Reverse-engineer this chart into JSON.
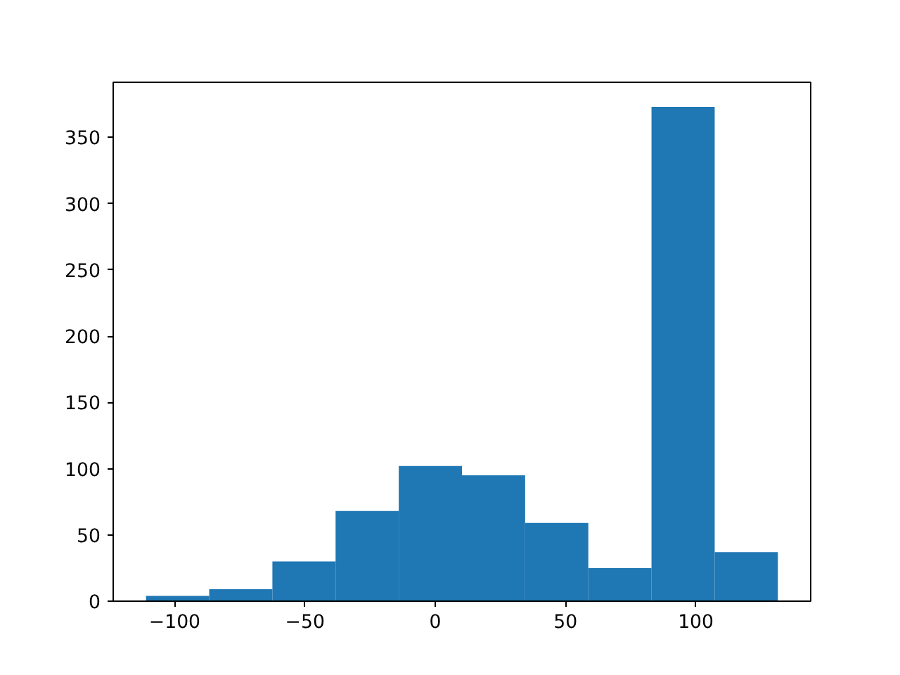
{
  "chart_data": {
    "type": "histogram",
    "bins": [
      -111,
      -86.75,
      -62.5,
      -38.25,
      -14,
      10.25,
      34.5,
      58.75,
      83,
      107.25,
      131.5
    ],
    "values": [
      4,
      9,
      30,
      68,
      102,
      95,
      59,
      25,
      373,
      37
    ],
    "color": "#1f77b4",
    "xlim": [
      -123.6,
      144.1
    ],
    "ylim": [
      0,
      391.6
    ],
    "xticks": [
      {
        "value": -100,
        "label": "−100"
      },
      {
        "value": -50,
        "label": "−50"
      },
      0,
      50,
      100
    ],
    "yticks": [
      0,
      50,
      100,
      150,
      200,
      250,
      300,
      350
    ],
    "grid": false
  }
}
